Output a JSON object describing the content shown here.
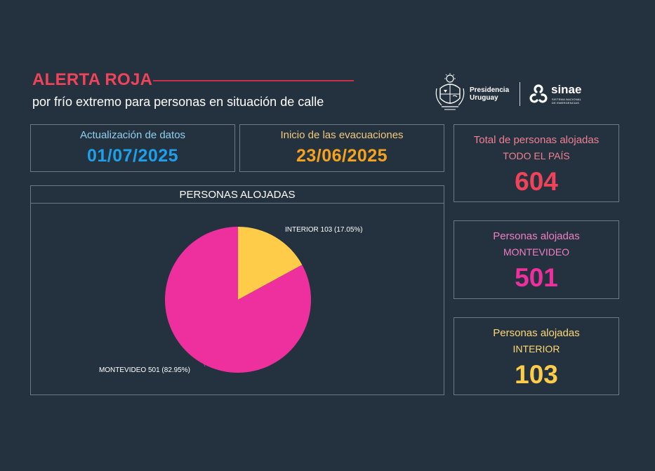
{
  "header": {
    "title": "ALERTA ROJA",
    "subtitle": "por frío extremo para personas en situación de calle"
  },
  "logos": {
    "presidencia_line1": "Presidencia",
    "presidencia_line2": "Uruguay",
    "presidencia_icon": "uruguay-coat-of-arms",
    "sinae_word": "sinae",
    "sinae_sub1": "SISTEMA NACIONAL",
    "sinae_sub2": "DE EMERGENCIAS",
    "sinae_icon": "sinae-trefoil"
  },
  "cards": {
    "actualizacion": {
      "label": "Actualización de datos",
      "value": "01/07/2025",
      "label_color": "#8fd0ef",
      "value_color": "#1e9fea"
    },
    "inicio": {
      "label": "Inicio de las evacuaciones",
      "value": "23/06/2025",
      "label_color": "#f3c97a",
      "value_color": "#f5a21c"
    }
  },
  "stats": {
    "total": {
      "label": "Total de personas alojadas",
      "sub": "TODO EL PAÍS",
      "value": "604",
      "color": "#f0435a",
      "label_color": "#f08090"
    },
    "montevideo": {
      "label": "Personas alojadas",
      "sub": "MONTEVIDEO",
      "value": "501",
      "color": "#ee2f9e",
      "label_color": "#f07ec4"
    },
    "interior": {
      "label": "Personas alojadas",
      "sub": "INTERIOR",
      "value": "103",
      "color": "#ffcc4a",
      "label_color": "#ffd873"
    }
  },
  "chart_data": {
    "type": "pie",
    "title": "PERSONAS ALOJADAS",
    "slices": [
      {
        "name": "INTERIOR",
        "value": 103,
        "percent": 17.05,
        "label": "INTERIOR 103 (17.05%)",
        "color": "#ffcc4a"
      },
      {
        "name": "MONTEVIDEO",
        "value": 501,
        "percent": 82.95,
        "label": "MONTEVIDEO 501 (82.95%)",
        "color": "#ee2f9e"
      }
    ]
  }
}
